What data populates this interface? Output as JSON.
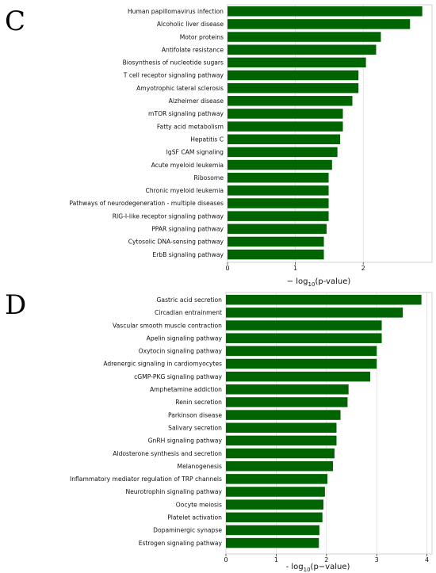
{
  "chart_data": [
    {
      "type": "bar",
      "orientation": "horizontal",
      "panel_label": "C",
      "categories": [
        "Human papillomavirus infection",
        "Alcoholic liver disease",
        "Motor proteins",
        "Antifolate resistance",
        "Biosynthesis of nucleotide sugars",
        "T cell receptor signaling pathway",
        "Amyotrophic lateral sclerosis",
        "Alzheimer disease",
        "mTOR signaling pathway",
        "Fatty acid metabolism",
        "Hepatitis C",
        "IgSF CAM signaling",
        "Acute myeloid leukemia",
        "Ribosome",
        "Chronic myeloid leukemia",
        "Pathways of neurodegeneration - multiple diseases",
        "RIG-I-like receptor signaling pathway",
        "PPAR signaling pathway",
        "Cytosolic DNA-sensing pathway",
        "ErbB signaling pathway"
      ],
      "values": [
        2.87,
        2.69,
        2.26,
        2.19,
        2.04,
        1.93,
        1.93,
        1.84,
        1.7,
        1.7,
        1.66,
        1.62,
        1.54,
        1.49,
        1.49,
        1.49,
        1.49,
        1.46,
        1.42,
        1.42
      ],
      "xlabel_prefix": "− log",
      "xlabel_sub": "10",
      "xlabel_suffix": "(p-value)",
      "xticks": [
        "0",
        "1",
        "2"
      ],
      "xlim": [
        0,
        2.98
      ],
      "grid": "vertical",
      "bar_color": "#006400"
    },
    {
      "type": "bar",
      "orientation": "horizontal",
      "panel_label": "D",
      "categories": [
        "Gastric acid secretion",
        "Circadian entrainment",
        "Vascular smooth muscle contraction",
        "Apelin signaling pathway",
        "Oxytocin signaling pathway",
        "Adrenergic signaling in cardiomyocytes",
        "cGMP-PKG signaling pathway",
        "Amphetamine addiction",
        "Renin secretion",
        "Parkinson disease",
        "Salivary secretion",
        "GnRH signaling pathway",
        "Aldosterone synthesis and secretion",
        "Melanogenesis",
        "Inflammatory mediator regulation of TRP channels",
        "Neurotrophin signaling pathway",
        "Oocyte meiosis",
        "Platelet activation",
        "Dopaminergic synapse",
        "Estrogen signaling pathway"
      ],
      "values": [
        3.89,
        3.52,
        3.1,
        3.1,
        3.0,
        3.0,
        2.87,
        2.44,
        2.42,
        2.28,
        2.2,
        2.2,
        2.16,
        2.13,
        2.02,
        1.97,
        1.94,
        1.92,
        1.86,
        1.85
      ],
      "xlabel_prefix": "- log",
      "xlabel_sub": "10",
      "xlabel_suffix": "(p−value)",
      "xticks": [
        "0",
        "1",
        "2",
        "3",
        "4"
      ],
      "xlim": [
        0,
        4.0
      ],
      "grid": "vertical",
      "bar_color": "#006400"
    }
  ]
}
